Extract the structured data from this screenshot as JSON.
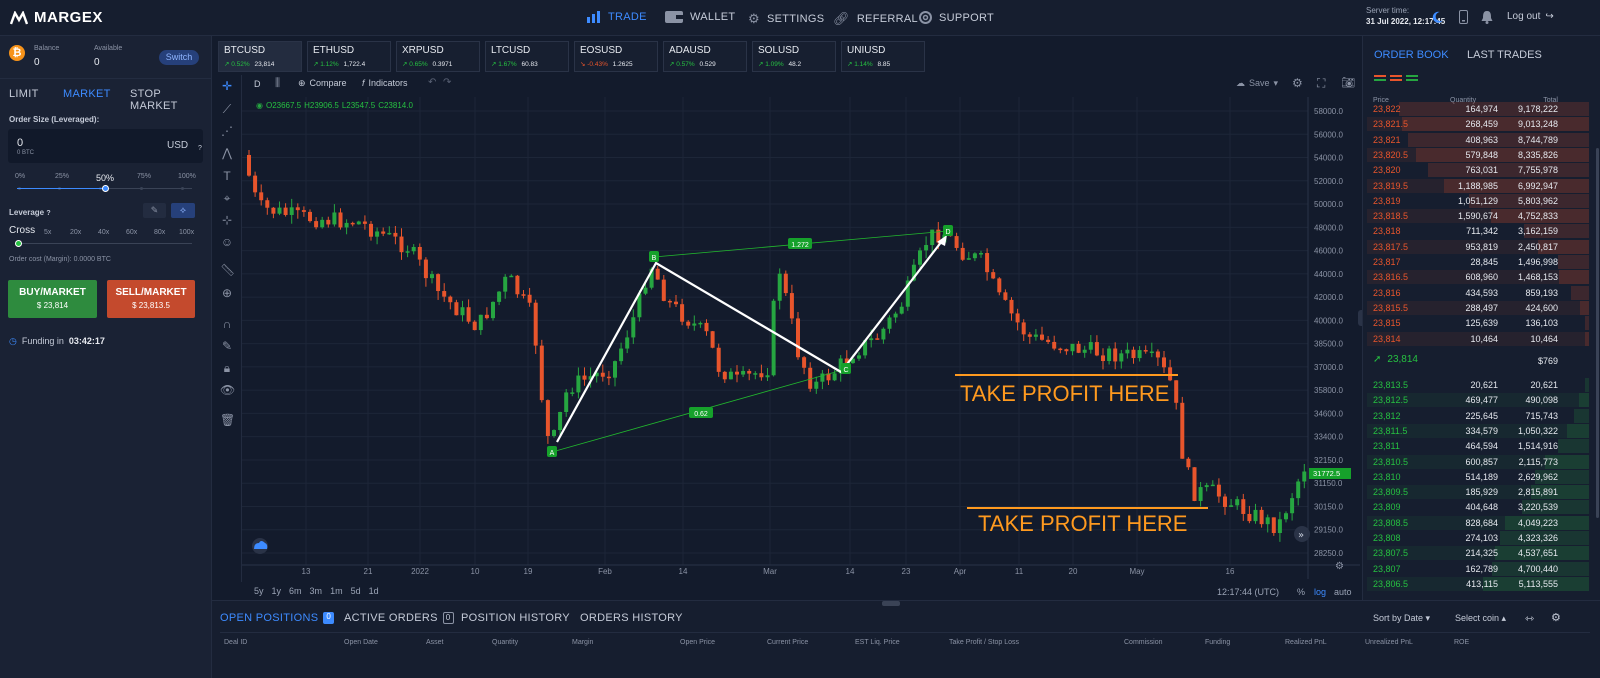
{
  "app": {
    "name": "MARGEX"
  },
  "nav": [
    {
      "label": "TRADE",
      "icon": "bar-chart-icon",
      "active": true
    },
    {
      "label": "WALLET",
      "icon": "wallet-icon"
    },
    {
      "label": "SETTINGS",
      "icon": "gear-icon"
    },
    {
      "label": "REFERRAL",
      "icon": "link-icon"
    },
    {
      "label": "SUPPORT",
      "icon": "lifebuoy-icon"
    }
  ],
  "server": {
    "label": "Server time:",
    "time": "31 Jul 2022, 12:17:45"
  },
  "header_right": {
    "logout": "Log out"
  },
  "account": {
    "balance_label": "Balance",
    "balance": "0",
    "available_label": "Available",
    "available": "0",
    "switch": "Switch"
  },
  "order_tabs": [
    "LIMIT",
    "MARKET",
    "STOP MARKET"
  ],
  "order_tab_active": "MARKET",
  "order": {
    "size_label": "Order Size (Leveraged):",
    "size_value": "0",
    "size_sub": "0 BTC",
    "currency": "USD",
    "q": "?",
    "slider_marks": [
      "0%",
      "25%",
      "50%",
      "75%",
      "100%"
    ],
    "slider_value": 0.5,
    "leverage_label": "Leverage",
    "leverage_q": "?",
    "cross_label": "Cross",
    "leverage_marks": [
      "5x",
      "20x",
      "40x",
      "60x",
      "80x",
      "100x"
    ],
    "order_cost": "Order cost (Margin): 0.0000 BTC"
  },
  "buy": {
    "label": "BUY/MARKET",
    "price": "$ 23,814"
  },
  "sell": {
    "label": "SELL/MARKET",
    "price": "$ 23,813.5"
  },
  "funding": {
    "label": "Funding in",
    "time": "03:42:17"
  },
  "tickers": [
    {
      "sym": "BTCUSD",
      "chg": "0.52%",
      "price": "23,814",
      "up": true,
      "active": true
    },
    {
      "sym": "ETHUSD",
      "chg": "1.12%",
      "price": "1,722.4",
      "up": true
    },
    {
      "sym": "XRPUSD",
      "chg": "0.65%",
      "price": "0.3971",
      "up": true
    },
    {
      "sym": "LTCUSD",
      "chg": "1.67%",
      "price": "60.83",
      "up": true
    },
    {
      "sym": "EOSUSD",
      "chg": "-0.43%",
      "price": "1.2625",
      "up": false
    },
    {
      "sym": "ADAUSD",
      "chg": "0.57%",
      "price": "0.529",
      "up": true
    },
    {
      "sym": "SOLUSD",
      "chg": "1.09%",
      "price": "48.2",
      "up": true
    },
    {
      "sym": "UNIUSD",
      "chg": "1.14%",
      "price": "8.85",
      "up": true
    }
  ],
  "chartbar": {
    "interval": "D",
    "compare": "Compare",
    "indicators": "Indicators",
    "save": "Save"
  },
  "ohlc": {
    "o": "O23667.5",
    "h": "H23906.5",
    "l": "L23547.5",
    "c": "C23814.0"
  },
  "chart_data": {
    "type": "candlestick",
    "x_ticks": [
      "13",
      "21",
      "2022",
      "10",
      "19",
      "Feb",
      "14",
      "Mar",
      "14",
      "23",
      "Apr",
      "11",
      "20",
      "May",
      "16"
    ],
    "y_ticks": [
      "58000.0",
      "56000.0",
      "54000.0",
      "52000.0",
      "50000.0",
      "48000.0",
      "46000.0",
      "44000.0",
      "42000.0",
      "40000.0",
      "38500.0",
      "37000.0",
      "35800.0",
      "34600.0",
      "33400.0",
      "32150.0",
      "31150.0",
      "30150.0",
      "29150.0",
      "28250.0"
    ],
    "last_price": "31772.5",
    "time_readout": "12:17:44 (UTC)",
    "scale_opts": [
      "%",
      "log",
      "auto"
    ],
    "harmonic": {
      "points": [
        "A",
        "B",
        "C",
        "D"
      ],
      "ratios": [
        "0.62",
        "1.272"
      ]
    },
    "annotations": [
      "TAKE PROFIT HERE",
      "TAKE PROFIT HERE"
    ],
    "colors": {
      "up": "#26a641",
      "down": "#e8552c",
      "pattern": "#22b82e",
      "arrow": "#ffffff",
      "tp": "#ff9a1f"
    }
  },
  "timeframes": [
    "5y",
    "1y",
    "6m",
    "3m",
    "1m",
    "5d",
    "1d"
  ],
  "orderbook": {
    "tabs": [
      "ORDER BOOK",
      "LAST TRADES"
    ],
    "cols": [
      "Price",
      "Quantity",
      "Total"
    ],
    "asks": [
      [
        "23,822",
        "164,974",
        "9,178,222"
      ],
      [
        "23,821.5",
        "268,459",
        "9,013,248"
      ],
      [
        "23,821",
        "408,963",
        "8,744,789"
      ],
      [
        "23,820.5",
        "579,848",
        "8,335,826"
      ],
      [
        "23,820",
        "763,031",
        "7,755,978"
      ],
      [
        "23,819.5",
        "1,188,985",
        "6,992,947"
      ],
      [
        "23,819",
        "1,051,129",
        "5,803,962"
      ],
      [
        "23,818.5",
        "1,590,674",
        "4,752,833"
      ],
      [
        "23,818",
        "711,342",
        "3,162,159"
      ],
      [
        "23,817.5",
        "953,819",
        "2,450,817"
      ],
      [
        "23,817",
        "28,845",
        "1,496,998"
      ],
      [
        "23,816.5",
        "608,960",
        "1,468,153"
      ],
      [
        "23,816",
        "434,593",
        "859,193"
      ],
      [
        "23,815.5",
        "288,497",
        "424,600"
      ],
      [
        "23,815",
        "125,639",
        "136,103"
      ],
      [
        "23,814",
        "10,464",
        "10,464"
      ]
    ],
    "mid": {
      "price": "23,814",
      "usd": "$769"
    },
    "bids": [
      [
        "23,813.5",
        "20,621",
        "20,621"
      ],
      [
        "23,812.5",
        "469,477",
        "490,098"
      ],
      [
        "23,812",
        "225,645",
        "715,743"
      ],
      [
        "23,811.5",
        "334,579",
        "1,050,322"
      ],
      [
        "23,811",
        "464,594",
        "1,514,916"
      ],
      [
        "23,810.5",
        "600,857",
        "2,115,773"
      ],
      [
        "23,810",
        "514,189",
        "2,629,962"
      ],
      [
        "23,809.5",
        "185,929",
        "2,815,891"
      ],
      [
        "23,809",
        "404,648",
        "3,220,539"
      ],
      [
        "23,808.5",
        "828,684",
        "4,049,223"
      ],
      [
        "23,808",
        "274,103",
        "4,323,326"
      ],
      [
        "23,807.5",
        "214,325",
        "4,537,651"
      ],
      [
        "23,807",
        "162,789",
        "4,700,440"
      ],
      [
        "23,806.5",
        "413,115",
        "5,113,555"
      ]
    ]
  },
  "bottom": {
    "tabs": [
      {
        "label": "OPEN POSITIONS",
        "count": "0"
      },
      {
        "label": "ACTIVE ORDERS",
        "count": "0"
      },
      {
        "label": "POSITION HISTORY"
      },
      {
        "label": "ORDERS HISTORY"
      }
    ],
    "sort": "Sort by Date",
    "select": "Select coin",
    "headers": [
      "Deal ID",
      "Open Date",
      "Asset",
      "Quantity",
      "Margin",
      "Open Price",
      "Current Price",
      "EST Liq. Price",
      "Take Profit / Stop Loss",
      "Commission",
      "Funding",
      "Realized PnL",
      "Unrealized PnL",
      "ROE"
    ]
  }
}
